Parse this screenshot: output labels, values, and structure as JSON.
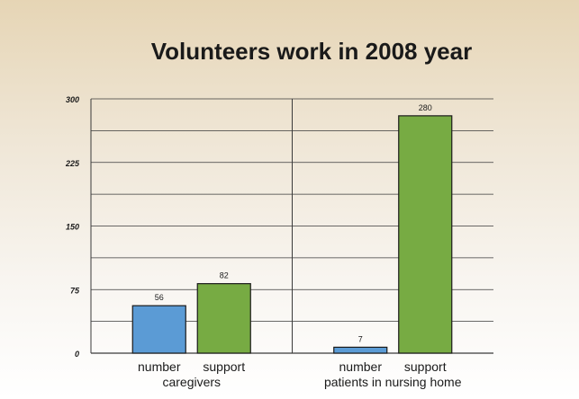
{
  "chart_data": {
    "type": "bar",
    "title": "Volunteers work in 2008 year",
    "xlabel": "",
    "ylabel": "",
    "ylim": [
      0,
      300
    ],
    "yticks": [
      0,
      75,
      150,
      225,
      300
    ],
    "grid": true,
    "legend": "none",
    "groups": [
      {
        "label": "caregivers",
        "bars": [
          {
            "label": "number",
            "value": 56,
            "color": "#5b9bd5"
          },
          {
            "label": "support",
            "value": 82,
            "color": "#77ab43"
          }
        ]
      },
      {
        "label": "patients in nursing home",
        "bars": [
          {
            "label": "number",
            "value": 7,
            "color": "#5b9bd5"
          },
          {
            "label": "support",
            "value": 280,
            "color": "#77ab43"
          }
        ]
      }
    ]
  }
}
